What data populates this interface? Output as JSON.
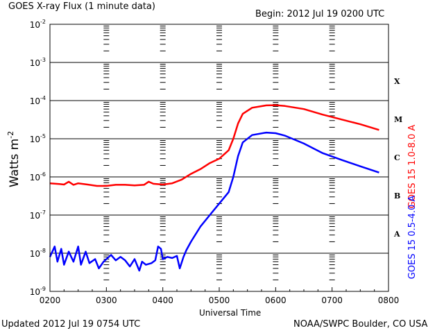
{
  "header": {
    "title": "GOES X-ray Flux (1 minute data)",
    "begin": "Begin: 2012 Jul 19 0200 UTC"
  },
  "footer": {
    "updated": "Updated 2012 Jul 19 0754 UTC",
    "credit": "NOAA/SWPC Boulder, CO USA"
  },
  "colors": {
    "long": "#ff0000",
    "short": "#0000ff",
    "axis": "#000000"
  },
  "chart_data": {
    "type": "line",
    "xlabel": "Universal Time",
    "ylabel_main": "Watts m",
    "ylabel_sup": "-2",
    "y_scale": "log",
    "ylim": [
      1e-09,
      0.01
    ],
    "xlim": [
      "2012-07-19 02:00",
      "2012-07-19 08:00"
    ],
    "x_ticks": [
      "0200",
      "0300",
      "0400",
      "0500",
      "0600",
      "0700",
      "0800"
    ],
    "y_ticks": [
      {
        "value": 0.01,
        "base": "10",
        "exp": "-2"
      },
      {
        "value": 0.001,
        "base": "10",
        "exp": "-3"
      },
      {
        "value": 0.0001,
        "base": "10",
        "exp": "-4"
      },
      {
        "value": 1e-05,
        "base": "10",
        "exp": "-5"
      },
      {
        "value": 1e-06,
        "base": "10",
        "exp": "-6"
      },
      {
        "value": 1e-07,
        "base": "10",
        "exp": "-7"
      },
      {
        "value": 1e-08,
        "base": "10",
        "exp": "-8"
      },
      {
        "value": 1e-09,
        "base": "10",
        "exp": "-9"
      }
    ],
    "flare_classes": [
      {
        "label": "X",
        "y": 0.00032
      },
      {
        "label": "M",
        "y": 3.2e-05
      },
      {
        "label": "C",
        "y": 3.2e-06
      },
      {
        "label": "B",
        "y": 3.2e-07
      },
      {
        "label": "A",
        "y": 3.2e-08
      }
    ],
    "series": [
      {
        "name": "GOES 15 1.0-8.0 A",
        "color": "#ff0000",
        "points": [
          [
            "02:00",
            6.8e-07
          ],
          [
            "02:10",
            6.5e-07
          ],
          [
            "02:15",
            6.3e-07
          ],
          [
            "02:20",
            7.5e-07
          ],
          [
            "02:25",
            6.2e-07
          ],
          [
            "02:30",
            6.8e-07
          ],
          [
            "02:40",
            6.3e-07
          ],
          [
            "02:50",
            5.8e-07
          ],
          [
            "03:00",
            5.8e-07
          ],
          [
            "03:10",
            6.2e-07
          ],
          [
            "03:20",
            6.2e-07
          ],
          [
            "03:30",
            6e-07
          ],
          [
            "03:40",
            6.2e-07
          ],
          [
            "03:45",
            7.5e-07
          ],
          [
            "03:50",
            6.6e-07
          ],
          [
            "04:00",
            6.3e-07
          ],
          [
            "04:10",
            6.8e-07
          ],
          [
            "04:20",
            8.5e-07
          ],
          [
            "04:30",
            1.2e-06
          ],
          [
            "04:40",
            1.6e-06
          ],
          [
            "04:50",
            2.3e-06
          ],
          [
            "05:00",
            3e-06
          ],
          [
            "05:10",
            5e-06
          ],
          [
            "05:15",
            1e-05
          ],
          [
            "05:20",
            2.5e-05
          ],
          [
            "05:25",
            4.5e-05
          ],
          [
            "05:35",
            6.5e-05
          ],
          [
            "05:50",
            7.5e-05
          ],
          [
            "06:00",
            7.6e-05
          ],
          [
            "06:10",
            7.2e-05
          ],
          [
            "06:30",
            6e-05
          ],
          [
            "06:50",
            4.3e-05
          ],
          [
            "07:10",
            3.2e-05
          ],
          [
            "07:30",
            2.4e-05
          ],
          [
            "07:50",
            1.7e-05
          ]
        ]
      },
      {
        "name": "GOES 15 0.5-4.0 A",
        "color": "#0000ff",
        "points": [
          [
            "02:00",
            8e-09
          ],
          [
            "02:05",
            1.5e-08
          ],
          [
            "02:08",
            6e-09
          ],
          [
            "02:12",
            1.3e-08
          ],
          [
            "02:15",
            5e-09
          ],
          [
            "02:20",
            1.1e-08
          ],
          [
            "02:25",
            6e-09
          ],
          [
            "02:30",
            1.5e-08
          ],
          [
            "02:33",
            5e-09
          ],
          [
            "02:38",
            1.1e-08
          ],
          [
            "02:42",
            5.5e-09
          ],
          [
            "02:48",
            7e-09
          ],
          [
            "02:52",
            4e-09
          ],
          [
            "02:57",
            6e-09
          ],
          [
            "03:00",
            7e-09
          ],
          [
            "03:05",
            9e-09
          ],
          [
            "03:10",
            6.5e-09
          ],
          [
            "03:15",
            8e-09
          ],
          [
            "03:20",
            6.5e-09
          ],
          [
            "03:25",
            4.5e-09
          ],
          [
            "03:30",
            7e-09
          ],
          [
            "03:35",
            3.5e-09
          ],
          [
            "03:38",
            6e-09
          ],
          [
            "03:42",
            5e-09
          ],
          [
            "03:48",
            5.5e-09
          ],
          [
            "03:52",
            6.5e-09
          ],
          [
            "03:55",
            1.5e-08
          ],
          [
            "03:58",
            1.3e-08
          ],
          [
            "04:00",
            7e-09
          ],
          [
            "04:05",
            8e-09
          ],
          [
            "04:10",
            7.5e-09
          ],
          [
            "04:15",
            8.5e-09
          ],
          [
            "04:18",
            4e-09
          ],
          [
            "04:22",
            8e-09
          ],
          [
            "04:25",
            1.2e-08
          ],
          [
            "04:30",
            2e-08
          ],
          [
            "04:40",
            5e-08
          ],
          [
            "04:50",
            1e-07
          ],
          [
            "05:00",
            2e-07
          ],
          [
            "05:10",
            4e-07
          ],
          [
            "05:15",
            1e-06
          ],
          [
            "05:20",
            3.5e-06
          ],
          [
            "05:25",
            8e-06
          ],
          [
            "05:35",
            1.25e-05
          ],
          [
            "05:50",
            1.45e-05
          ],
          [
            "06:00",
            1.4e-05
          ],
          [
            "06:10",
            1.2e-05
          ],
          [
            "06:30",
            7.5e-06
          ],
          [
            "06:50",
            4.2e-06
          ],
          [
            "07:10",
            2.8e-06
          ],
          [
            "07:30",
            1.9e-06
          ],
          [
            "07:50",
            1.3e-06
          ]
        ]
      }
    ]
  }
}
